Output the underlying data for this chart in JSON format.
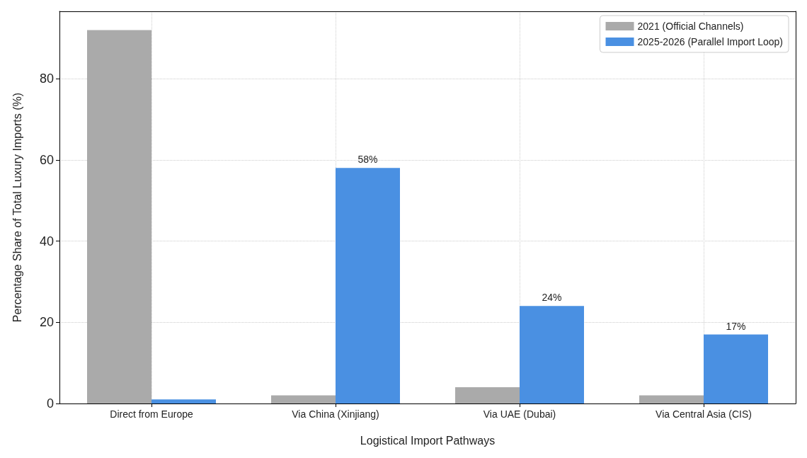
{
  "chart_data": {
    "type": "bar",
    "xlabel": "Logistical Import Pathways",
    "ylabel": "Percentage Share of Total Luxury Imports (%)",
    "categories": [
      "Direct from Europe",
      "Via China (Xinjiang)",
      "Via UAE (Dubai)",
      "Via Central Asia (CIS)"
    ],
    "series": [
      {
        "name": "2021 (Official Channels)",
        "color": "#aaaaaa",
        "values": [
          92,
          2,
          4,
          2
        ]
      },
      {
        "name": "2025-2026 (Parallel Import Loop)",
        "color": "#4a90e2",
        "values": [
          1,
          58,
          24,
          17
        ],
        "value_labels": [
          null,
          "58%",
          "24%",
          "17%"
        ]
      }
    ],
    "ylim": [
      0,
      96.6
    ],
    "yticks": [
      0,
      20,
      40,
      60,
      80
    ],
    "grid": true,
    "legend": "top right"
  }
}
